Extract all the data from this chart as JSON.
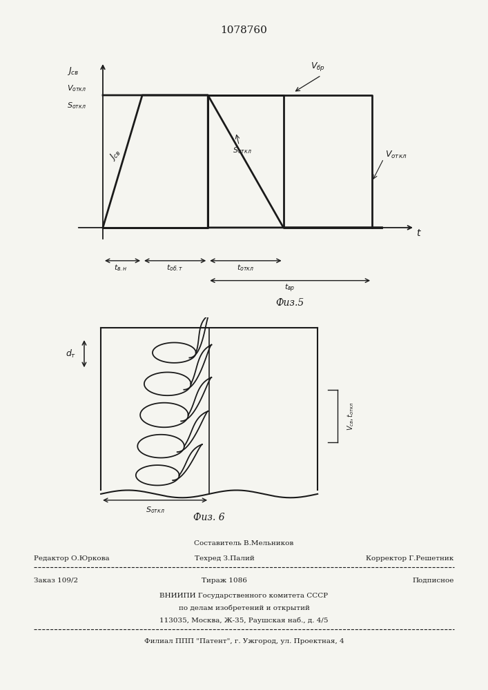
{
  "title": "1078760",
  "fig5_label": "Физ.5",
  "fig6_label": "Физ. 6",
  "bg_color": "#e8e8e8",
  "line_color": "#1a1a1a",
  "fig5": {
    "t1": 1.2,
    "t2": 3.2,
    "t3": 5.5,
    "t4": 8.2
  },
  "footer": {
    "line1_center": "Составитель В.Мельников",
    "line2_left": "Редактор О.Юркова",
    "line2_center": "Техред З.Палий",
    "line2_right": "Корректор Г.Решетник",
    "line3_left": "Заказ 109/2",
    "line3_center": "Тираж 1086",
    "line3_right": "Подписное",
    "line4": "ВНИИПИ Государственного комитета СССР",
    "line5": "по делам изобретений и открытий",
    "line6": "113035, Москва, Ж-35, Раушская наб., д. 4/5",
    "line7": "Филиал ППП \"Патент\", г. Ужгород, ул. Проектная, 4"
  }
}
